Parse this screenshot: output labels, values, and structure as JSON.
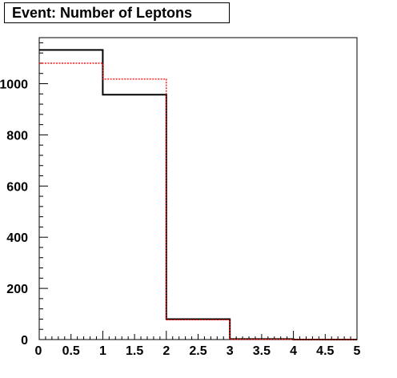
{
  "chart_data": {
    "type": "histogram",
    "title": "Event: Number of Leptons",
    "xlabel": "",
    "ylabel": "",
    "xlim": [
      0,
      5
    ],
    "ylim": [
      0,
      1180
    ],
    "bin_edges": [
      0,
      1,
      2,
      3,
      4,
      5
    ],
    "x_tick_labels": [
      "0",
      "0.5",
      "1",
      "1.5",
      "2",
      "2.5",
      "3",
      "3.5",
      "4",
      "4.5",
      "5"
    ],
    "x_tick_values": [
      0,
      0.5,
      1,
      1.5,
      2,
      2.5,
      3,
      3.5,
      4,
      4.5,
      5
    ],
    "y_tick_labels": [
      "0",
      "200",
      "400",
      "600",
      "800",
      "1000"
    ],
    "y_tick_values": [
      0,
      200,
      400,
      600,
      800,
      1000
    ],
    "series": [
      {
        "style": "solid",
        "color": "#000000",
        "values": [
          1132,
          957,
          80,
          2,
          0
        ]
      },
      {
        "style": "dashed",
        "color": "#ff0000",
        "values": [
          1080,
          1018,
          77,
          1,
          0
        ]
      }
    ]
  }
}
